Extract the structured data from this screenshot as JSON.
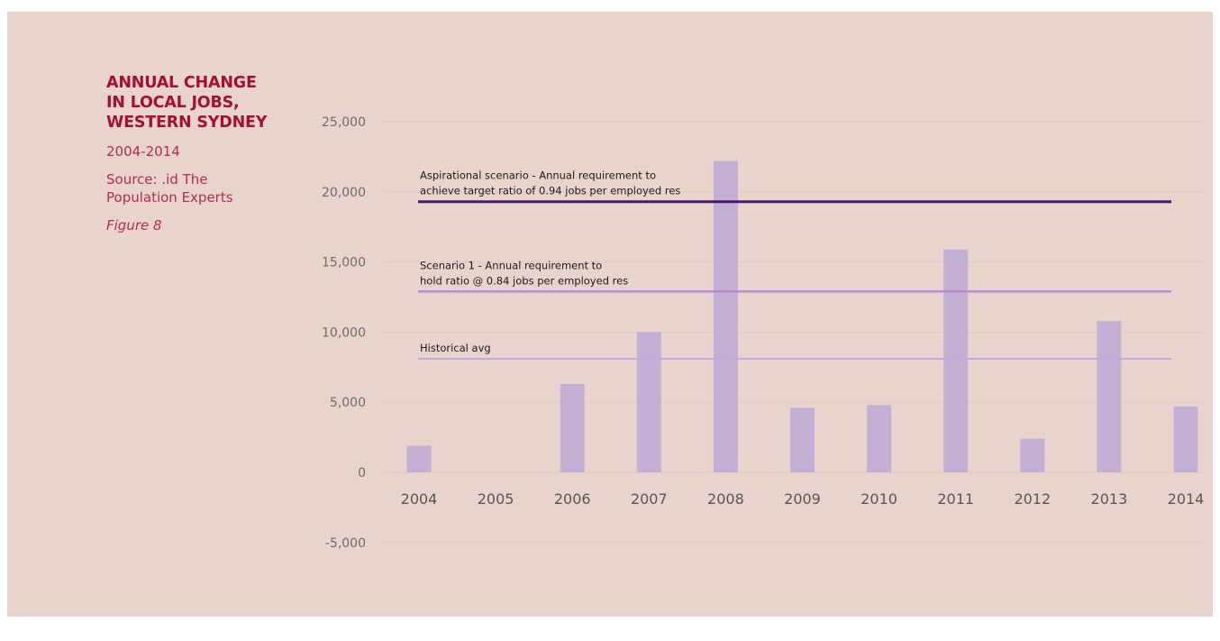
{
  "sidebar": {
    "title_lines": [
      "ANNUAL CHANGE",
      "IN LOCAL JOBS,",
      "WESTERN SYDNEY"
    ],
    "years": "2004-2014",
    "source_lines": [
      "Source: .id The",
      "Population Experts"
    ],
    "figure": "Figure 8"
  },
  "colors": {
    "background": "#e9d4cd",
    "title": "#a6102e",
    "bar": "#c4afd5",
    "aspirational_line": "#4a1670",
    "scenario1_line": "#b98ad8",
    "historical_line": "#c3a9de"
  },
  "chart_data": {
    "type": "bar",
    "categories": [
      "2004",
      "2005",
      "2006",
      "2007",
      "2008",
      "2009",
      "2010",
      "2011",
      "2012",
      "2013",
      "2014"
    ],
    "values": [
      1900,
      0,
      6300,
      10000,
      22200,
      4600,
      4800,
      15900,
      2400,
      10800,
      4700
    ],
    "ylim": [
      -5000,
      25000
    ],
    "yticks": [
      25000,
      20000,
      15000,
      10000,
      5000,
      0,
      -5000
    ],
    "ytick_labels": [
      "25,000",
      "20,000",
      "15,000",
      "10,000",
      "5,000",
      "0",
      "-5,000"
    ],
    "grid": true,
    "reference_lines": [
      {
        "key": "aspirational",
        "value": 19300,
        "label_lines": [
          "Aspirational scenario - Annual requirement to",
          "achieve target ratio of 0.94 jobs per employed res"
        ]
      },
      {
        "key": "scenario1",
        "value": 12900,
        "label_lines": [
          "Scenario 1 - Annual requirement to",
          "hold ratio @ 0.84 jobs per employed res"
        ]
      },
      {
        "key": "historical",
        "value": 8100,
        "label_lines": [
          "Historical avg"
        ]
      }
    ]
  }
}
